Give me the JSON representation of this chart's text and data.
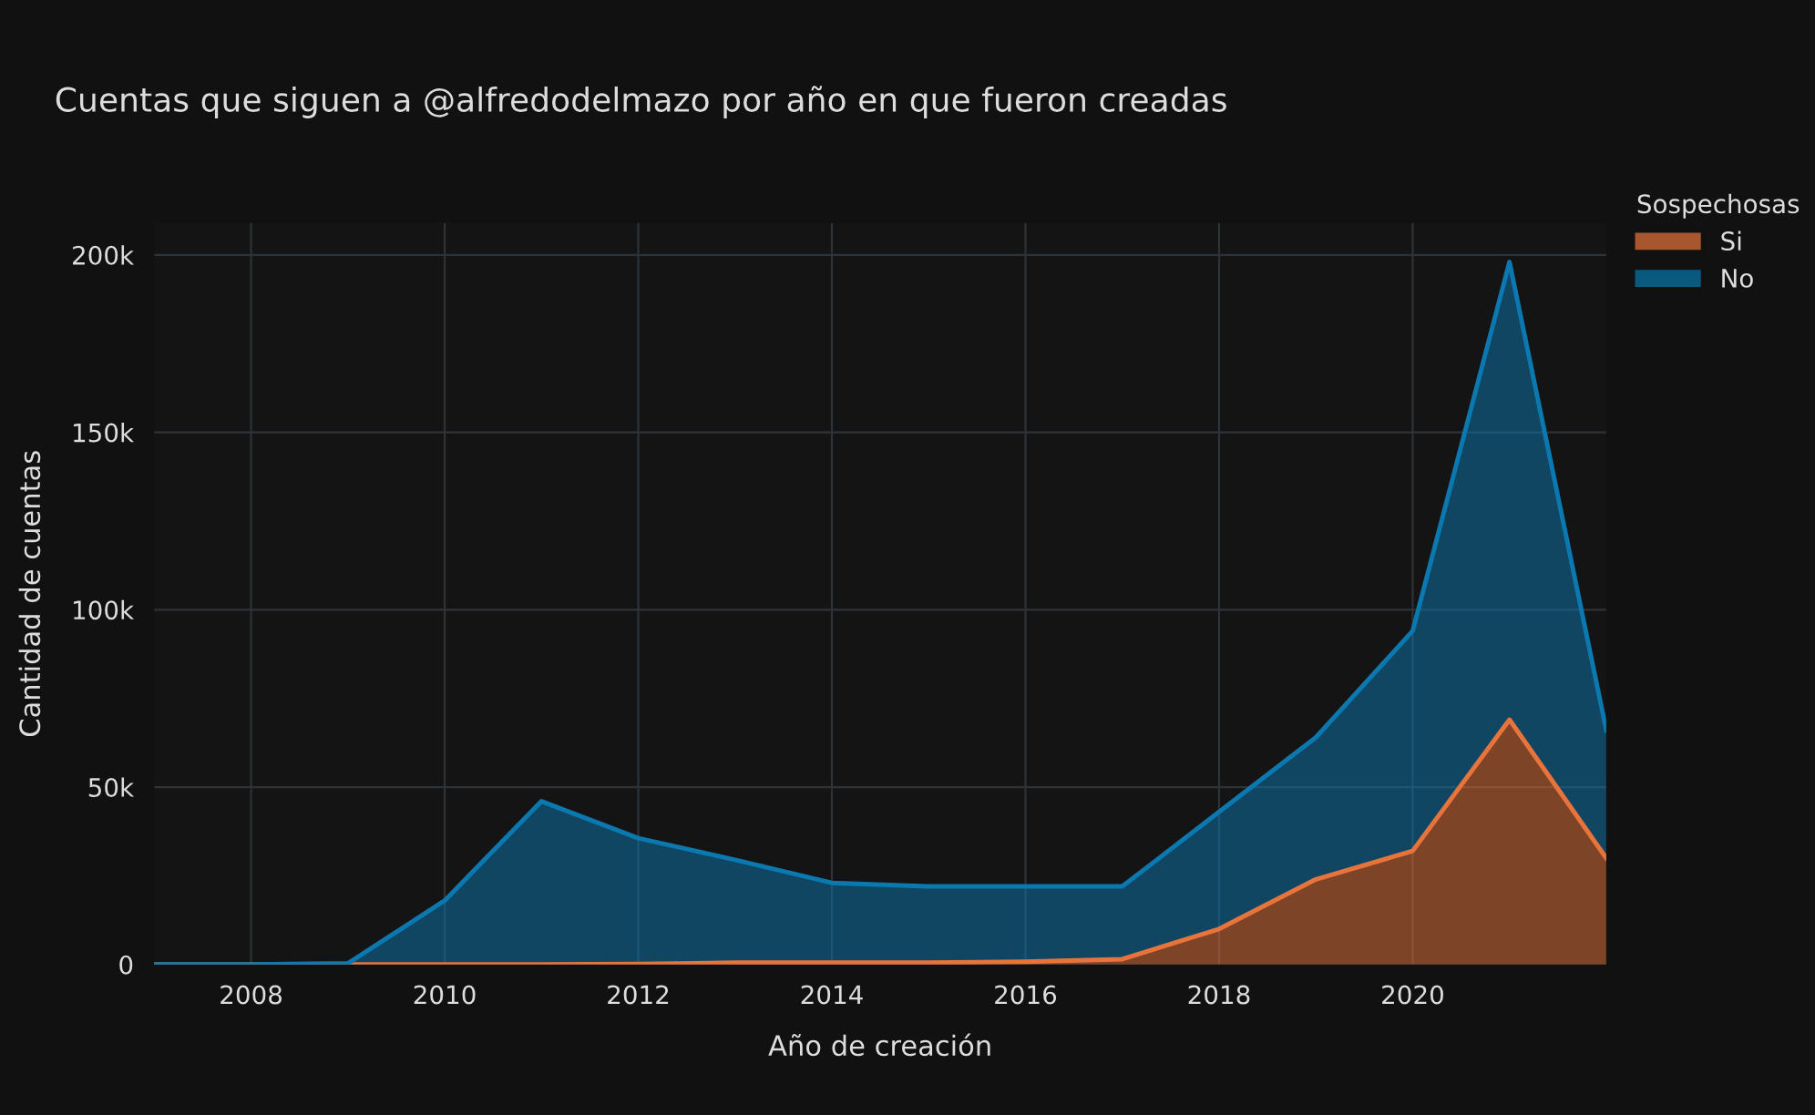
{
  "chart_data": {
    "type": "area",
    "stacked": true,
    "title": "Cuentas que siguen a @alfredodelmazo por año en que fueron creadas",
    "xlabel": "Año de creación",
    "ylabel": "Cantidad de cuentas",
    "legend_title": "Sospechosas",
    "legend": "top right",
    "grid": true,
    "x": [
      2007,
      2008,
      2009,
      2010,
      2011,
      2012,
      2013,
      2014,
      2015,
      2016,
      2017,
      2018,
      2019,
      2020,
      2021,
      2022
    ],
    "series": [
      {
        "name": "Si",
        "color": "#e8743b",
        "values": [
          0,
          0,
          0,
          0,
          0,
          100,
          500,
          500,
          500,
          800,
          1500,
          10000,
          24000,
          32000,
          69000,
          30000
        ]
      },
      {
        "name": "No",
        "color": "#0b78b0",
        "values": [
          0,
          0,
          300,
          18000,
          46000,
          35500,
          29000,
          22500,
          21500,
          21200,
          20500,
          33000,
          40000,
          62000,
          129000,
          36000
        ]
      }
    ],
    "xlim": [
      2007,
      2022
    ],
    "xticks": [
      2008,
      2010,
      2012,
      2014,
      2016,
      2018,
      2020
    ],
    "ylim": [
      0,
      209000
    ],
    "yticks": [
      0,
      {
        "value": 50000,
        "label": "50k"
      },
      {
        "value": 100000,
        "label": "100k"
      },
      {
        "value": 150000,
        "label": "150k"
      },
      {
        "value": 200000,
        "label": "200k"
      }
    ]
  }
}
